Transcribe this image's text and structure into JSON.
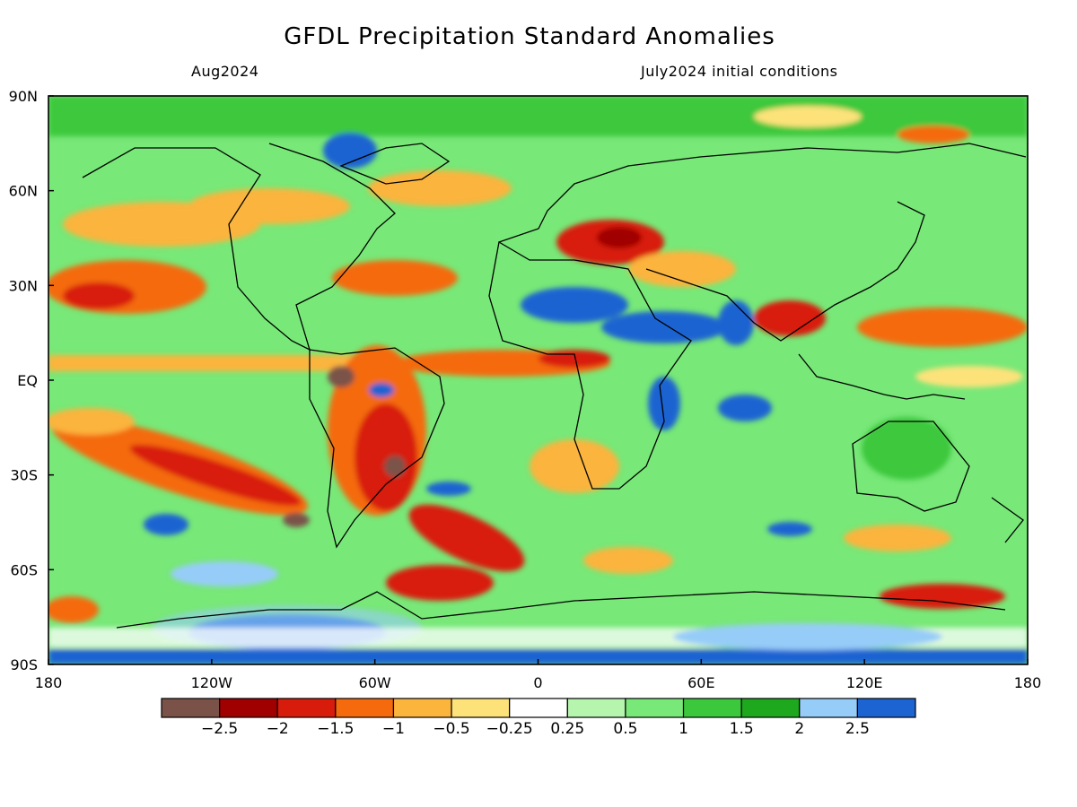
{
  "title": "GFDL Precipitation Standard Anomalies",
  "subtitle_left": "Aug2024",
  "subtitle_right": "July2024 initial conditions",
  "lat_ticks": [
    "90N",
    "60N",
    "30N",
    "EQ",
    "30S",
    "60S",
    "90S"
  ],
  "lon_ticks": [
    "180",
    "120W",
    "60W",
    "0",
    "60E",
    "120E",
    "180"
  ],
  "colorbar": {
    "colors": [
      "#7a5248",
      "#a00000",
      "#d81c0c",
      "#f46a0c",
      "#fbb43c",
      "#fde27a",
      "#ffffff",
      "#b6f5ae",
      "#78e878",
      "#3cc83c",
      "#1ea81e",
      "#96ccf8",
      "#1c64d2"
    ],
    "labels": [
      "−2.5",
      "−2",
      "−1.5",
      "−1",
      "−0.5",
      "−0.25",
      "0.25",
      "0.5",
      "1",
      "1.5",
      "2",
      "2.5"
    ]
  }
}
